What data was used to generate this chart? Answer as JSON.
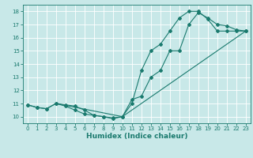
{
  "title": "",
  "xlabel": "Humidex (Indice chaleur)",
  "ylabel": "",
  "bg_color": "#c8e8e8",
  "grid_color": "#ffffff",
  "line_color": "#1a7a6e",
  "xlim": [
    -0.5,
    23.5
  ],
  "ylim": [
    9.5,
    18.5
  ],
  "xticks": [
    0,
    1,
    2,
    3,
    4,
    5,
    6,
    7,
    8,
    9,
    10,
    11,
    12,
    13,
    14,
    15,
    16,
    17,
    18,
    19,
    20,
    21,
    22,
    23
  ],
  "yticks": [
    10,
    11,
    12,
    13,
    14,
    15,
    16,
    17,
    18
  ],
  "line1": {
    "x": [
      0,
      1,
      2,
      3,
      4,
      5,
      6,
      7,
      8,
      9,
      10,
      11,
      12,
      13,
      14,
      15,
      16,
      17,
      18,
      19,
      20,
      21,
      22,
      23
    ],
    "y": [
      10.9,
      10.7,
      10.6,
      11.0,
      10.8,
      10.5,
      10.2,
      10.1,
      10.0,
      9.9,
      10.0,
      11.3,
      11.55,
      13.0,
      13.5,
      15.0,
      15.0,
      17.0,
      17.9,
      17.5,
      17.0,
      16.9,
      16.6,
      16.5
    ]
  },
  "line2": {
    "x": [
      0,
      1,
      2,
      3,
      4,
      5,
      6,
      7,
      8,
      9,
      10,
      11,
      12,
      13,
      14,
      15,
      16,
      17,
      18,
      19,
      20,
      21,
      22,
      23
    ],
    "y": [
      10.9,
      10.7,
      10.6,
      11.0,
      10.9,
      10.8,
      10.5,
      10.1,
      10.0,
      9.85,
      10.0,
      11.0,
      13.5,
      15.0,
      15.5,
      16.5,
      17.5,
      18.0,
      18.0,
      17.4,
      16.5,
      16.5,
      16.5,
      16.5
    ]
  },
  "line3": {
    "x": [
      3,
      10,
      23
    ],
    "y": [
      11.0,
      10.0,
      16.5
    ]
  },
  "figsize": [
    3.2,
    2.0
  ],
  "dpi": 100,
  "tick_fontsize": 5.0,
  "xlabel_fontsize": 6.5,
  "marker_size": 2.0,
  "linewidth": 0.8
}
